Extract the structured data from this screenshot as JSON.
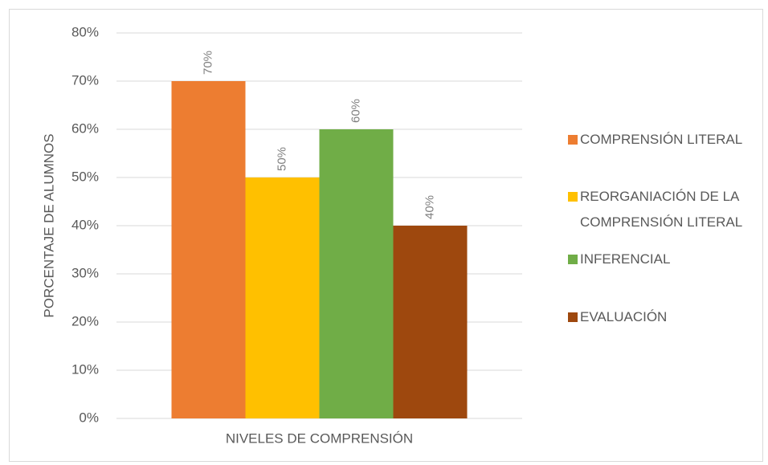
{
  "chart_data": {
    "type": "bar",
    "y_axis_label": "PORCENTAJE DE ALUMNOS",
    "categories": [
      "NIVELES DE COMPRENSIÓN"
    ],
    "series": [
      {
        "name": "COMPRENSIÓN LITERAL",
        "color": "#ed7d31",
        "values": [
          70
        ],
        "value_labels": [
          "70%"
        ]
      },
      {
        "name": "REORGANIACIÓN DE LA COMPRENSIÓN LITERAL",
        "color": "#ffc000",
        "values": [
          50
        ],
        "value_labels": [
          "50%"
        ]
      },
      {
        "name": "INFERENCIAL",
        "color": "#70ad47",
        "values": [
          60
        ],
        "value_labels": [
          "60%"
        ]
      },
      {
        "name": "EVALUACIÓN",
        "color": "#9e480e",
        "values": [
          40
        ],
        "value_labels": [
          "40%"
        ]
      }
    ],
    "ylim": [
      0,
      80
    ],
    "yticks": [
      {
        "value": 0,
        "label": "0%"
      },
      {
        "value": 10,
        "label": "10%"
      },
      {
        "value": 20,
        "label": "20%"
      },
      {
        "value": 30,
        "label": "30%"
      },
      {
        "value": 40,
        "label": "40%"
      },
      {
        "value": 50,
        "label": "50%"
      },
      {
        "value": 60,
        "label": "60%"
      },
      {
        "value": 70,
        "label": "70%"
      },
      {
        "value": 80,
        "label": "80%"
      }
    ],
    "grid": true,
    "legend": "right"
  }
}
